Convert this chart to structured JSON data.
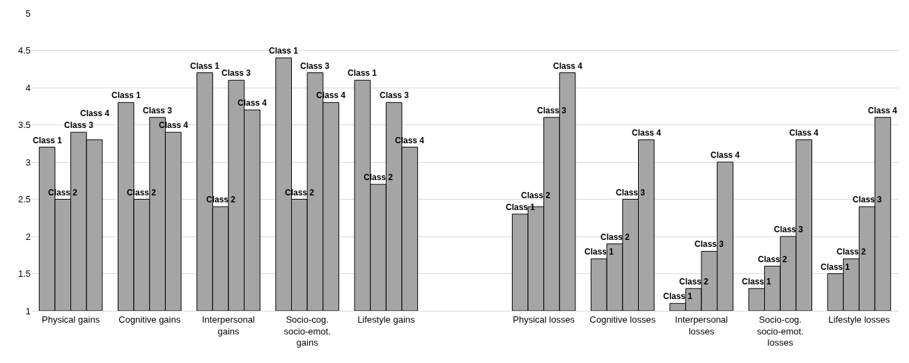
{
  "chart_data": {
    "type": "bar",
    "categories": [
      "Physical gains",
      "Cognitive gains",
      "Interpersonal gains",
      "Socio-cog. socio-emot. gains",
      "Lifestyle gains",
      null,
      "Physical losses",
      "Cognitive losses",
      "Interpersonal losses",
      "Socio-cog. socio-emot. losses",
      "Lifestyle losses"
    ],
    "series": [
      {
        "name": "Class 1",
        "color": "#a5a5a5",
        "values": [
          3.2,
          3.8,
          4.2,
          4.4,
          4.1,
          null,
          2.3,
          1.7,
          1.1,
          1.3,
          1.5
        ]
      },
      {
        "name": "Class 2",
        "color": "#a5a5a5",
        "values": [
          2.5,
          2.5,
          2.4,
          2.5,
          2.7,
          null,
          2.4,
          1.9,
          1.3,
          1.6,
          1.7
        ]
      },
      {
        "name": "Class 3",
        "color": "#a5a5a5",
        "values": [
          3.4,
          3.6,
          4.1,
          4.2,
          3.8,
          null,
          3.6,
          2.5,
          1.8,
          2.0,
          2.4
        ]
      },
      {
        "name": "Class 4",
        "color": "#a5a5a5",
        "values": [
          3.3,
          3.4,
          3.7,
          3.8,
          3.2,
          null,
          4.2,
          3.3,
          3.0,
          3.3,
          3.6
        ]
      }
    ],
    "ylim": [
      1,
      5
    ],
    "yticks": [
      1,
      1.5,
      2,
      2.5,
      3,
      3.5,
      4,
      4.5,
      5
    ],
    "grid": "y",
    "legend": false
  }
}
